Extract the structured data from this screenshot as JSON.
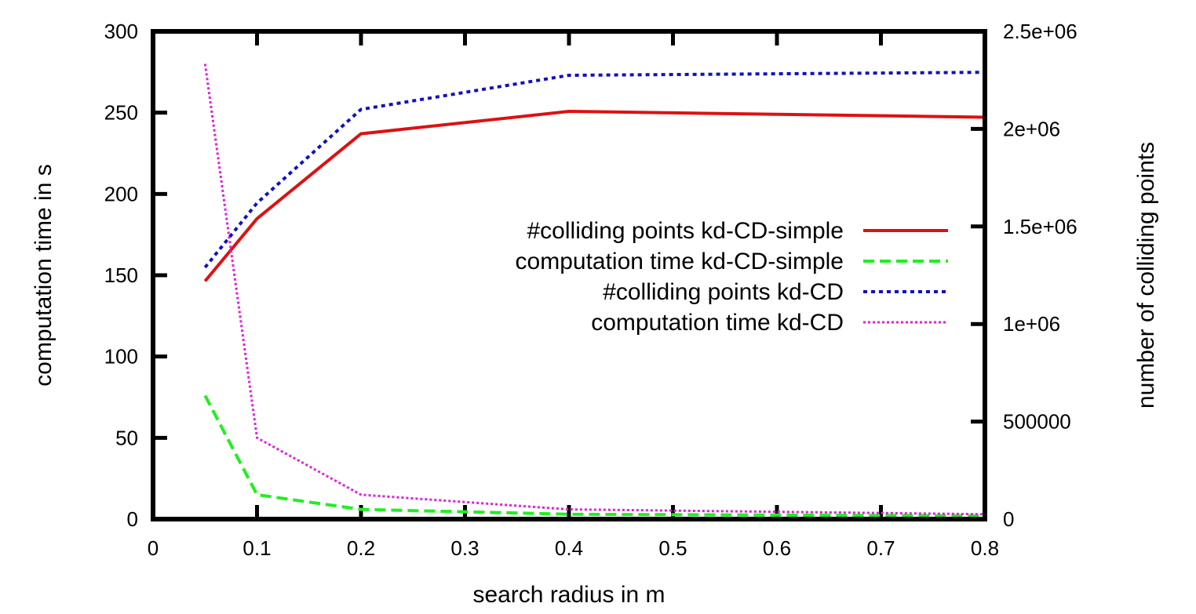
{
  "chart_data": {
    "type": "line",
    "title": "",
    "xlabel": "search radius in m",
    "ylabel": "computation time in s",
    "y2label": "number of colliding points",
    "xlim": [
      0,
      0.8
    ],
    "ylim": [
      0,
      300
    ],
    "y2lim": [
      0,
      2500000
    ],
    "x_ticks": [
      0,
      0.1,
      0.2,
      0.3,
      0.4,
      0.5,
      0.6,
      0.7,
      0.8
    ],
    "x_tick_labels": [
      "0",
      "0.1",
      "0.2",
      "0.3",
      "0.4",
      "0.5",
      "0.6",
      "0.7",
      "0.8"
    ],
    "y_ticks": [
      0,
      50,
      100,
      150,
      200,
      250,
      300
    ],
    "y_tick_labels": [
      "0",
      "50",
      "100",
      "150",
      "200",
      "250",
      "300"
    ],
    "y2_ticks": [
      0,
      500000,
      1000000,
      1500000,
      2000000,
      2500000
    ],
    "y2_tick_labels": [
      "0",
      "500000",
      "1e+06",
      "1.5e+06",
      "2e+06",
      "2.5e+06"
    ],
    "grid": false,
    "legend_position": "center-right",
    "series": [
      {
        "name": "#colliding points kd-CD-simple",
        "axis": "right",
        "color": "#dd1111",
        "dash": "solid",
        "x": [
          0.05,
          0.1,
          0.2,
          0.4,
          0.8
        ],
        "values": [
          1220000,
          1540000,
          1975000,
          2090000,
          2060000
        ]
      },
      {
        "name": "computation time kd-CD-simple",
        "axis": "left",
        "color": "#22ee22",
        "dash": "dashed",
        "x": [
          0.05,
          0.1,
          0.2,
          0.4,
          0.8
        ],
        "values": [
          76,
          15,
          6,
          3,
          2
        ]
      },
      {
        "name": "#colliding points kd-CD",
        "axis": "right",
        "color": "#1111bb",
        "dash": "dotted",
        "x": [
          0.05,
          0.1,
          0.2,
          0.4,
          0.8
        ],
        "values": [
          1290000,
          1620000,
          2100000,
          2275000,
          2290000
        ]
      },
      {
        "name": "computation time kd-CD",
        "axis": "left",
        "color": "#dd22dd",
        "dash": "fine-dotted",
        "x": [
          0.05,
          0.1,
          0.2,
          0.4,
          0.8
        ],
        "values": [
          280,
          50,
          15,
          6,
          3
        ]
      }
    ]
  }
}
